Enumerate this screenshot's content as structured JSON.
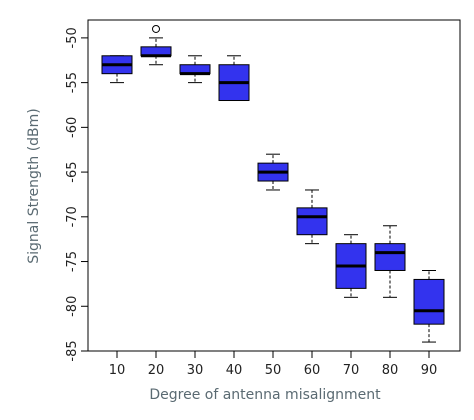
{
  "chart_data": {
    "type": "boxplot",
    "xlabel": "Degree of antenna misalignment",
    "ylabel": "Signal Strength (dBm)",
    "categories": [
      "10",
      "20",
      "30",
      "40",
      "50",
      "60",
      "70",
      "80",
      "90"
    ],
    "ylim": [
      -85,
      -48
    ],
    "yticks": [
      -50,
      -55,
      -60,
      -65,
      -70,
      -75,
      -80,
      -85
    ],
    "grid": false,
    "legend": "none",
    "box_color": "#3333ee",
    "series": [
      {
        "category": "10",
        "whisker_low": -55,
        "q1": -54,
        "median": -53,
        "q3": -52,
        "whisker_high": -52,
        "outliers": []
      },
      {
        "category": "20",
        "whisker_low": -53,
        "q1": -52,
        "median": -52,
        "q3": -51,
        "whisker_high": -50,
        "outliers": [
          -49
        ]
      },
      {
        "category": "30",
        "whisker_low": -55,
        "q1": -54,
        "median": -54,
        "q3": -53,
        "whisker_high": -52,
        "outliers": []
      },
      {
        "category": "40",
        "whisker_low": -57,
        "q1": -57,
        "median": -55,
        "q3": -53,
        "whisker_high": -52,
        "outliers": []
      },
      {
        "category": "50",
        "whisker_low": -67,
        "q1": -66,
        "median": -65,
        "q3": -64,
        "whisker_high": -63,
        "outliers": []
      },
      {
        "category": "60",
        "whisker_low": -73,
        "q1": -72,
        "median": -70,
        "q3": -69,
        "whisker_high": -67,
        "outliers": []
      },
      {
        "category": "70",
        "whisker_low": -79,
        "q1": -78,
        "median": -75.5,
        "q3": -73,
        "whisker_high": -72,
        "outliers": []
      },
      {
        "category": "80",
        "whisker_low": -79,
        "q1": -76,
        "median": -74,
        "q3": -73,
        "whisker_high": -71,
        "outliers": []
      },
      {
        "category": "90",
        "whisker_low": -84,
        "q1": -82,
        "median": -80.5,
        "q3": -77,
        "whisker_high": -76,
        "outliers": []
      }
    ]
  }
}
